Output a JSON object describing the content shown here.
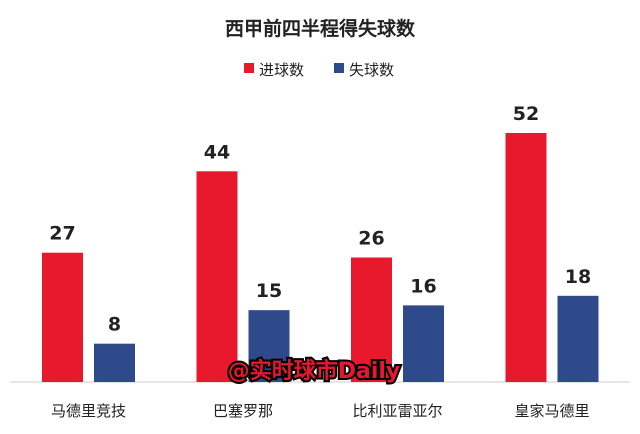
{
  "chart_data": {
    "type": "bar",
    "title": "西甲前四半程得失球数",
    "categories": [
      "马德里竞技",
      "巴塞罗那",
      "比利亚雷亚尔",
      "皇家马德里"
    ],
    "series": [
      {
        "name": "进球数",
        "values": [
          27,
          44,
          26,
          52
        ],
        "color": "#e8192c"
      },
      {
        "name": "失球数",
        "values": [
          8,
          15,
          16,
          18
        ],
        "color": "#2e4a8b"
      }
    ],
    "xlabel": "",
    "ylabel": "",
    "ylim": [
      0,
      52
    ],
    "grid": false,
    "legend": "top"
  },
  "watermark": "@实时球市Daily"
}
